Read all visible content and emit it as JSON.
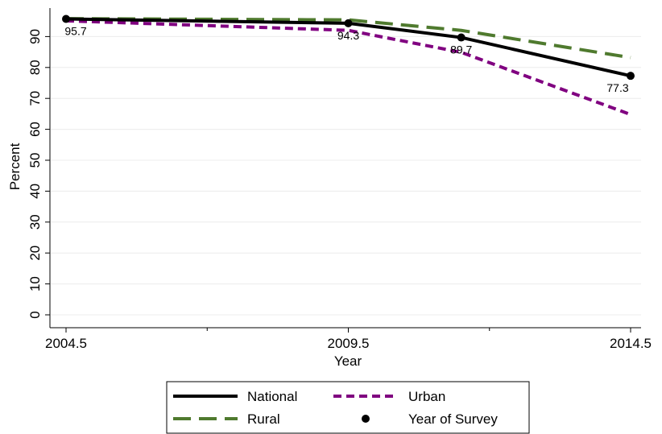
{
  "chart_data": {
    "type": "line",
    "xlabel": "Year",
    "ylabel": "Percent",
    "xlim": [
      2004.5,
      2014.5
    ],
    "ylim": [
      0,
      95
    ],
    "x_ticks": [
      "2004.5",
      "2009.5",
      "2014.5"
    ],
    "x_minor_ticks": [
      2007,
      2012
    ],
    "y_ticks": [
      "0",
      "10",
      "20",
      "30",
      "40",
      "50",
      "60",
      "70",
      "80",
      "90"
    ],
    "grid": true,
    "legend_position": "bottom",
    "series": [
      {
        "name": "National",
        "color": "#000000",
        "style": "solid",
        "x": [
          2004.5,
          2009.5,
          2011.5,
          2014.5
        ],
        "values": [
          95.7,
          94.3,
          89.7,
          77.3
        ]
      },
      {
        "name": "Rural",
        "color": "#4f7a2e",
        "style": "long-dash",
        "x": [
          2004.5,
          2009.5,
          2011.5,
          2014.5
        ],
        "values": [
          95.8,
          95.4,
          92.0,
          83.2
        ]
      },
      {
        "name": "Urban",
        "color": "#800080",
        "style": "short-dash",
        "x": [
          2004.5,
          2009.5,
          2011.5,
          2014.5
        ],
        "values": [
          95.1,
          92.0,
          84.9,
          64.8
        ]
      }
    ],
    "survey_points": {
      "name": "Year of Survey",
      "x": [
        2004.5,
        2009.5,
        2011.5,
        2014.5
      ],
      "values": [
        95.7,
        94.3,
        89.7,
        77.3
      ],
      "labels": [
        "95.7",
        "94.3",
        "89.7",
        "77.3"
      ]
    }
  }
}
